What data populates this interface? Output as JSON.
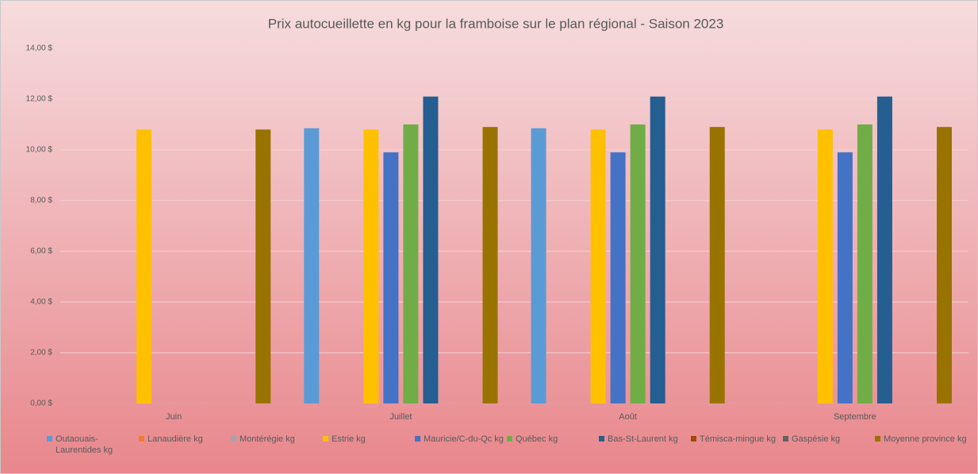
{
  "chart_data": {
    "type": "bar",
    "title": "Prix autocueillette en kg pour la framboise sur le plan régional - Saison 2023",
    "categories": [
      "Juin",
      "Juillet",
      "Août",
      "Septembre"
    ],
    "series": [
      {
        "name": "Outaouais-Laurentides kg",
        "color": "#5b9bd5",
        "values": [
          null,
          10.85,
          10.85,
          null
        ]
      },
      {
        "name": "Lanaudière kg",
        "color": "#ed7d31",
        "values": [
          null,
          null,
          null,
          null
        ]
      },
      {
        "name": "Montérégie kg",
        "color": "#a5a5a5",
        "values": [
          null,
          null,
          null,
          null
        ]
      },
      {
        "name": "Estrie kg",
        "color": "#ffc000",
        "values": [
          10.8,
          10.8,
          10.8,
          10.8
        ]
      },
      {
        "name": "Mauricie/C-du-Qc kg",
        "color": "#4472c4",
        "values": [
          null,
          9.9,
          9.9,
          9.9
        ]
      },
      {
        "name": "Québec kg",
        "color": "#70ad47",
        "values": [
          null,
          11,
          11,
          11
        ]
      },
      {
        "name": "Bas-St-Laurent kg",
        "color": "#255e91",
        "values": [
          null,
          12.1,
          12.1,
          12.1
        ]
      },
      {
        "name": "Témisca-mingue kg",
        "color": "#9e480e",
        "values": [
          null,
          null,
          null,
          null
        ]
      },
      {
        "name": "Gaspésie kg",
        "color": "#636363",
        "values": [
          null,
          null,
          null,
          null
        ]
      },
      {
        "name": "Moyenne province kg",
        "color": "#997300",
        "values": [
          10.8,
          10.9,
          10.9,
          10.9
        ]
      }
    ],
    "ylim": [
      0,
      14
    ],
    "yticks": [
      {
        "value": 0,
        "label": "0,00 $"
      },
      {
        "value": 2,
        "label": "2,00 $"
      },
      {
        "value": 4,
        "label": "4,00 $"
      },
      {
        "value": 6,
        "label": "6,00 $"
      },
      {
        "value": 8,
        "label": "8,00 $"
      },
      {
        "value": 10,
        "label": "10,00 $"
      },
      {
        "value": 12,
        "label": "12,00 $"
      },
      {
        "value": 14,
        "label": "14,00 $"
      }
    ],
    "grid": true,
    "legend": "bottom"
  }
}
